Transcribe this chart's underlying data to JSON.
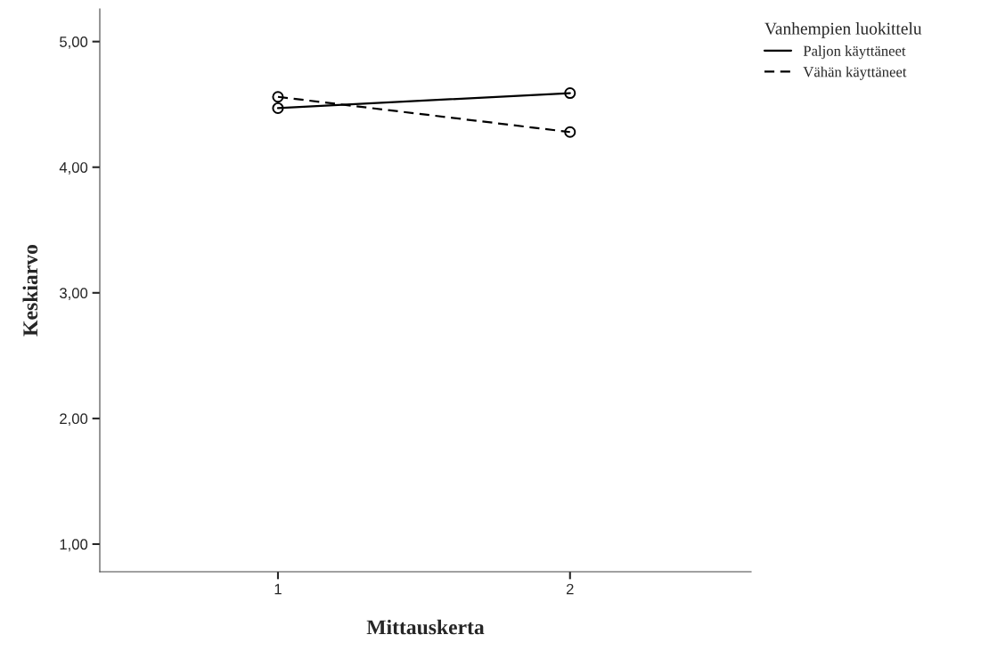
{
  "chart_data": {
    "type": "line",
    "xlabel": "Mittauskerta",
    "ylabel": "Keskiarvo",
    "legend_title": "Vanhempien luokittelu",
    "x": [
      1,
      2
    ],
    "xlim": [
      0.39,
      2.62
    ],
    "xticks": [
      1,
      2
    ],
    "ylim": [
      0.78,
      5.26
    ],
    "yticks": [
      {
        "value": 1,
        "label": "1,00"
      },
      {
        "value": 2,
        "label": "2,00"
      },
      {
        "value": 3,
        "label": "3,00"
      },
      {
        "value": 4,
        "label": "4,00"
      },
      {
        "value": 5,
        "label": "5,00"
      }
    ],
    "series": [
      {
        "name": "Paljon käyttäneet",
        "color": "#000000",
        "line_style": "solid",
        "values": [
          4.47,
          4.59
        ]
      },
      {
        "name": "Vähän käyttäneet",
        "color": "#000000",
        "line_style": "dashed",
        "values": [
          4.56,
          4.28
        ]
      }
    ],
    "marker": "circle",
    "grid": false,
    "legend": "top right"
  }
}
